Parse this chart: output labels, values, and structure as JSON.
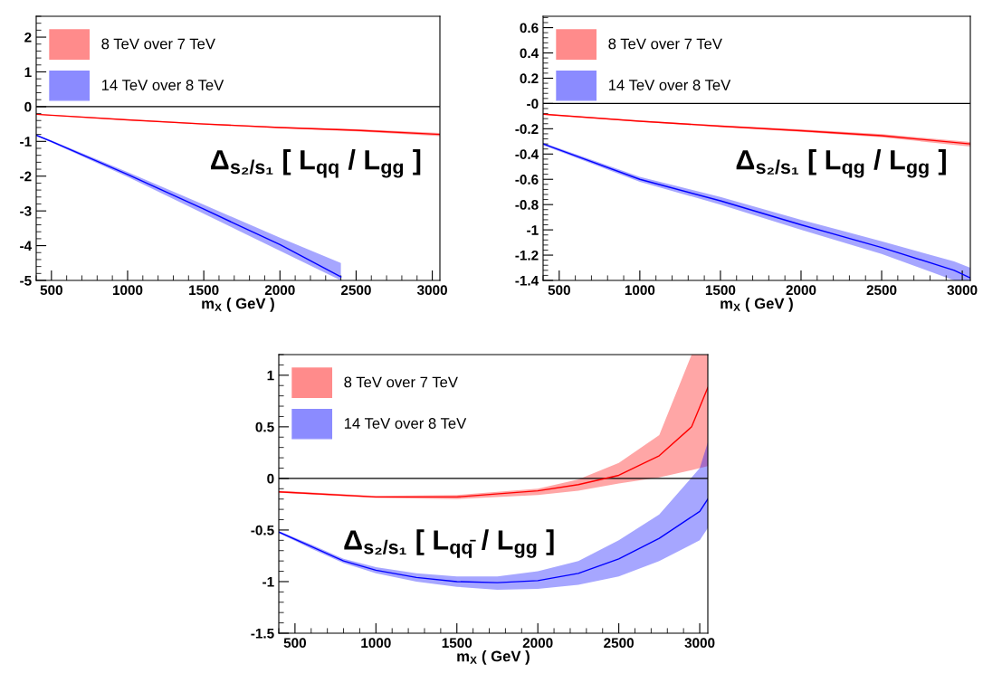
{
  "chart_data": [
    {
      "type": "line",
      "xlabel": "m$_{X}$ ( GeV )",
      "annotations": [
        "Δ$_{s₂/s₁}$ [ L$_{qq}$ / L$_{gg}$ ]"
      ],
      "legend": "top left",
      "xlim": [
        400,
        3050
      ],
      "ylim": [
        -5,
        2.6
      ],
      "xticks": [
        500,
        1000,
        1500,
        2000,
        2500,
        3000
      ],
      "yticks": [
        -5,
        -4,
        -3,
        -2,
        -1,
        0,
        1,
        2
      ],
      "ref_lines": [
        {
          "axis": "y",
          "value": 0,
          "color": "#000000"
        }
      ],
      "series": [
        {
          "name": "8 TeV over 7 TeV",
          "color": "#ff0000",
          "x": [
            400,
            1000,
            1500,
            2000,
            2500,
            3050
          ],
          "values": [
            -0.22,
            -0.38,
            -0.5,
            -0.6,
            -0.68,
            -0.8
          ],
          "lower": [
            -0.23,
            -0.39,
            -0.52,
            -0.62,
            -0.71,
            -0.85
          ],
          "upper": [
            -0.21,
            -0.37,
            -0.48,
            -0.58,
            -0.65,
            -0.76
          ]
        },
        {
          "name": "14 TeV over 8 TeV",
          "color": "#0000ff",
          "x": [
            400,
            500,
            1000,
            1500,
            2000,
            2400
          ],
          "values": [
            -0.82,
            -1.0,
            -1.95,
            -2.95,
            -3.97,
            -4.9
          ],
          "lower": [
            -0.84,
            -1.03,
            -2.02,
            -3.08,
            -4.15,
            -5.0
          ],
          "upper": [
            -0.8,
            -0.97,
            -1.88,
            -2.82,
            -3.77,
            -4.5
          ]
        }
      ]
    },
    {
      "type": "line",
      "xlabel": "m$_{X}$ ( GeV )",
      "annotations": [
        "Δ$_{s₂/s₁}$ [ L$_{qg}$ / L$_{gg}$ ]"
      ],
      "legend": "top left",
      "xlim": [
        400,
        3050
      ],
      "ylim": [
        -1.4,
        0.69
      ],
      "xticks": [
        500,
        1000,
        1500,
        2000,
        2500,
        3000
      ],
      "yticks": [
        -1.4,
        -1.2,
        -1,
        -0.8,
        -0.6,
        -0.4,
        -0.2,
        {
          "value": 0,
          "label": "-0"
        },
        0.2,
        0.4,
        0.6
      ],
      "ref_lines": [
        {
          "axis": "y",
          "value": 0,
          "color": "#000000"
        }
      ],
      "series": [
        {
          "name": "8 TeV over 7 TeV",
          "color": "#ff0000",
          "x": [
            400,
            1000,
            1500,
            2000,
            2500,
            3050
          ],
          "values": [
            -0.085,
            -0.14,
            -0.18,
            -0.215,
            -0.255,
            -0.32
          ],
          "lower": [
            -0.088,
            -0.145,
            -0.187,
            -0.225,
            -0.268,
            -0.34
          ],
          "upper": [
            -0.082,
            -0.135,
            -0.173,
            -0.205,
            -0.242,
            -0.305
          ]
        },
        {
          "name": "14 TeV over 8 TeV",
          "color": "#0000ff",
          "x": [
            400,
            1000,
            1500,
            2000,
            2500,
            2950,
            3050
          ],
          "values": [
            -0.32,
            -0.6,
            -0.77,
            -0.96,
            -1.14,
            -1.32,
            -1.38
          ],
          "lower": [
            -0.33,
            -0.62,
            -0.8,
            -1.0,
            -1.19,
            -1.4,
            -1.4
          ],
          "upper": [
            -0.31,
            -0.58,
            -0.74,
            -0.92,
            -1.09,
            -1.25,
            -1.3
          ]
        }
      ]
    },
    {
      "type": "line",
      "xlabel": "m$_{X}$ ( GeV )",
      "annotations": [
        "Δ$_{s₂/s₁}$ [ L$_{qq̄}$ / L$_{gg}$ ]"
      ],
      "legend": "top left",
      "xlim": [
        400,
        3050
      ],
      "ylim": [
        -1.5,
        1.2
      ],
      "xticks": [
        500,
        1000,
        1500,
        2000,
        2500,
        3000
      ],
      "yticks": [
        -1.5,
        -1,
        -0.5,
        0,
        0.5,
        1
      ],
      "ref_lines": [
        {
          "axis": "y",
          "value": 0,
          "color": "#000000"
        }
      ],
      "series": [
        {
          "name": "8 TeV over 7 TeV",
          "color": "#ff0000",
          "x": [
            400,
            1000,
            1500,
            2000,
            2250,
            2500,
            2750,
            2950,
            3050
          ],
          "values": [
            -0.13,
            -0.18,
            -0.18,
            -0.12,
            -0.06,
            0.03,
            0.22,
            0.5,
            0.88
          ],
          "lower": [
            -0.14,
            -0.19,
            -0.2,
            -0.16,
            -0.12,
            -0.05,
            0.01,
            0.08,
            0.12
          ],
          "upper": [
            -0.12,
            -0.17,
            -0.16,
            -0.1,
            -0.01,
            0.15,
            0.42,
            1.2,
            1.2
          ]
        },
        {
          "name": "14 TeV over 8 TeV",
          "color": "#0000ff",
          "x": [
            400,
            600,
            800,
            1000,
            1250,
            1500,
            1750,
            2000,
            2250,
            2500,
            2750,
            3000,
            3050
          ],
          "values": [
            -0.52,
            -0.66,
            -0.8,
            -0.89,
            -0.96,
            -1.0,
            -1.01,
            -0.99,
            -0.92,
            -0.78,
            -0.58,
            -0.32,
            -0.2
          ],
          "lower": [
            -0.53,
            -0.68,
            -0.82,
            -0.92,
            -1.0,
            -1.05,
            -1.08,
            -1.07,
            -1.03,
            -0.95,
            -0.8,
            -0.6,
            -0.48
          ],
          "upper": [
            -0.51,
            -0.64,
            -0.78,
            -0.86,
            -0.92,
            -0.95,
            -0.95,
            -0.9,
            -0.8,
            -0.6,
            -0.35,
            0.1,
            0.35
          ]
        }
      ]
    }
  ]
}
